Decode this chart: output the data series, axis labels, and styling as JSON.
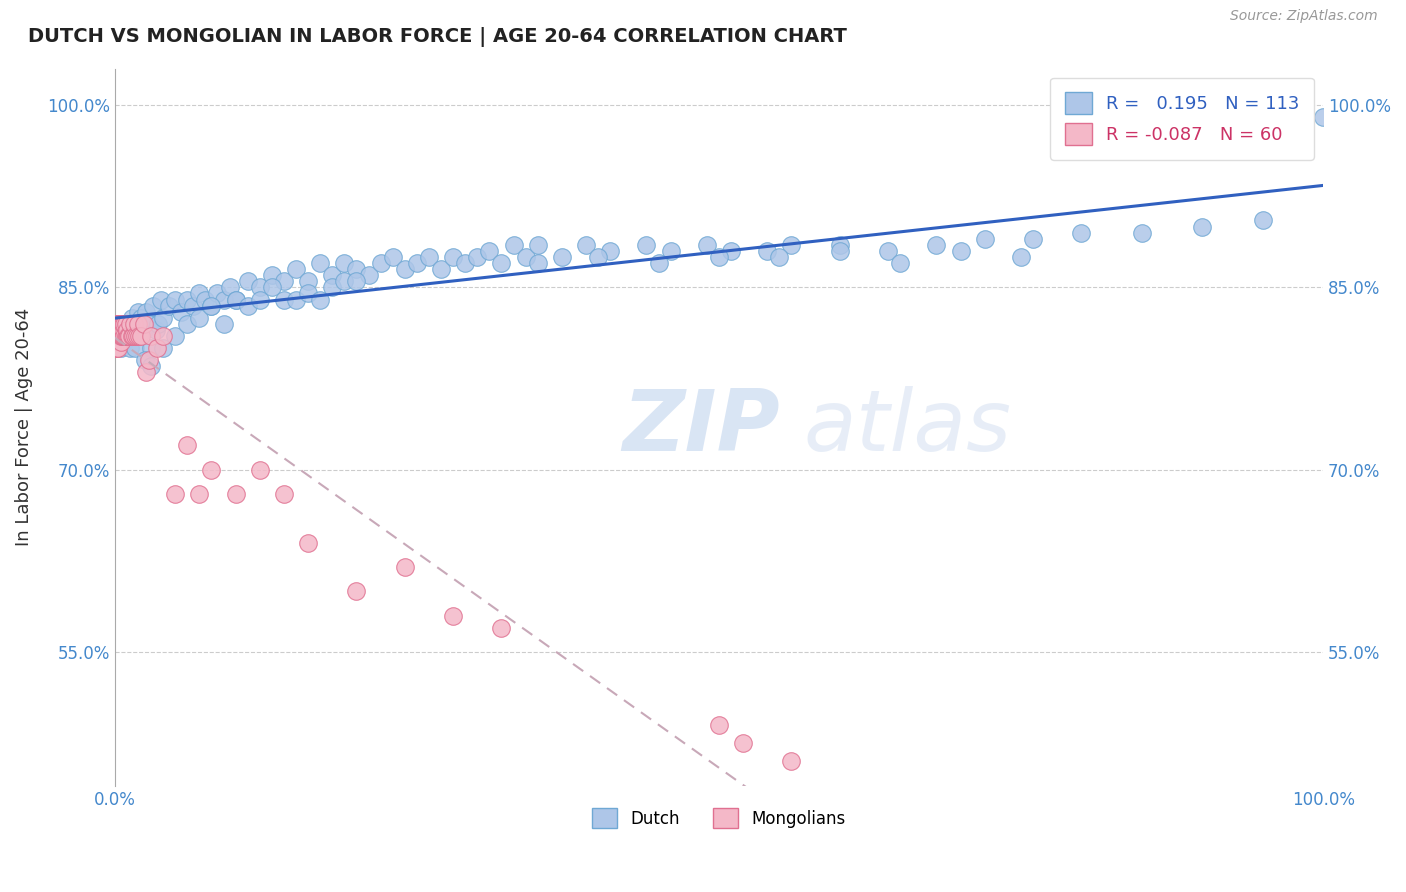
{
  "title": "DUTCH VS MONGOLIAN IN LABOR FORCE | AGE 20-64 CORRELATION CHART",
  "source_text": "Source: ZipAtlas.com",
  "ylabel": "In Labor Force | Age 20-64",
  "xlim": [
    0.0,
    1.0
  ],
  "ylim": [
    0.44,
    1.03
  ],
  "ytick_labels": [
    "55.0%",
    "70.0%",
    "85.0%",
    "100.0%"
  ],
  "ytick_vals": [
    0.55,
    0.7,
    0.85,
    1.0
  ],
  "R_dutch": 0.195,
  "N_dutch": 113,
  "R_mongol": -0.087,
  "N_mongol": 60,
  "dutch_color": "#aec6e8",
  "dutch_edge": "#6fa8d4",
  "mongol_color": "#f4b8c8",
  "mongol_edge": "#e07090",
  "trend_dutch_color": "#3060c0",
  "trend_mongol_color": "#c8a8b8",
  "watermark_zip": "ZIP",
  "watermark_atlas": "atlas",
  "legend_labels": [
    "Dutch",
    "Mongolians"
  ],
  "dutch_x": [
    0.002,
    0.003,
    0.004,
    0.005,
    0.006,
    0.007,
    0.008,
    0.009,
    0.01,
    0.011,
    0.012,
    0.013,
    0.014,
    0.015,
    0.016,
    0.017,
    0.018,
    0.019,
    0.02,
    0.022,
    0.024,
    0.026,
    0.028,
    0.03,
    0.032,
    0.034,
    0.036,
    0.038,
    0.04,
    0.045,
    0.05,
    0.055,
    0.06,
    0.065,
    0.07,
    0.075,
    0.08,
    0.085,
    0.09,
    0.095,
    0.1,
    0.11,
    0.12,
    0.13,
    0.14,
    0.15,
    0.16,
    0.17,
    0.18,
    0.19,
    0.2,
    0.21,
    0.22,
    0.23,
    0.24,
    0.25,
    0.26,
    0.27,
    0.28,
    0.29,
    0.3,
    0.31,
    0.32,
    0.33,
    0.34,
    0.35,
    0.37,
    0.39,
    0.41,
    0.44,
    0.46,
    0.49,
    0.51,
    0.54,
    0.56,
    0.6,
    0.64,
    0.68,
    0.72,
    0.76,
    0.8,
    0.85,
    0.9,
    0.95,
    0.025,
    0.03,
    0.04,
    0.05,
    0.06,
    0.07,
    0.08,
    0.09,
    0.1,
    0.11,
    0.12,
    0.13,
    0.14,
    0.15,
    0.16,
    0.17,
    0.18,
    0.19,
    0.2,
    0.35,
    0.4,
    0.45,
    0.5,
    0.55,
    0.6,
    0.65,
    0.7,
    0.75,
    1.0
  ],
  "dutch_y": [
    0.81,
    0.815,
    0.82,
    0.8,
    0.81,
    0.82,
    0.805,
    0.815,
    0.81,
    0.82,
    0.815,
    0.8,
    0.825,
    0.81,
    0.82,
    0.8,
    0.815,
    0.83,
    0.82,
    0.825,
    0.815,
    0.83,
    0.82,
    0.8,
    0.835,
    0.815,
    0.82,
    0.84,
    0.825,
    0.835,
    0.84,
    0.83,
    0.84,
    0.835,
    0.845,
    0.84,
    0.835,
    0.845,
    0.84,
    0.85,
    0.84,
    0.855,
    0.85,
    0.86,
    0.855,
    0.865,
    0.855,
    0.87,
    0.86,
    0.87,
    0.865,
    0.86,
    0.87,
    0.875,
    0.865,
    0.87,
    0.875,
    0.865,
    0.875,
    0.87,
    0.875,
    0.88,
    0.87,
    0.885,
    0.875,
    0.885,
    0.875,
    0.885,
    0.88,
    0.885,
    0.88,
    0.885,
    0.88,
    0.88,
    0.885,
    0.885,
    0.88,
    0.885,
    0.89,
    0.89,
    0.895,
    0.895,
    0.9,
    0.905,
    0.79,
    0.785,
    0.8,
    0.81,
    0.82,
    0.825,
    0.835,
    0.82,
    0.84,
    0.835,
    0.84,
    0.85,
    0.84,
    0.84,
    0.845,
    0.84,
    0.85,
    0.855,
    0.855,
    0.87,
    0.875,
    0.87,
    0.875,
    0.875,
    0.88,
    0.87,
    0.88,
    0.875,
    0.99
  ],
  "mongol_x": [
    0.0,
    0.0,
    0.001,
    0.001,
    0.001,
    0.002,
    0.002,
    0.002,
    0.003,
    0.003,
    0.003,
    0.004,
    0.004,
    0.004,
    0.005,
    0.005,
    0.005,
    0.006,
    0.006,
    0.007,
    0.007,
    0.007,
    0.008,
    0.008,
    0.009,
    0.009,
    0.01,
    0.01,
    0.011,
    0.012,
    0.013,
    0.014,
    0.015,
    0.016,
    0.017,
    0.018,
    0.019,
    0.02,
    0.022,
    0.024,
    0.026,
    0.028,
    0.03,
    0.035,
    0.04,
    0.05,
    0.06,
    0.07,
    0.08,
    0.1,
    0.12,
    0.14,
    0.16,
    0.2,
    0.24,
    0.28,
    0.32,
    0.5,
    0.52,
    0.56
  ],
  "mongol_y": [
    0.8,
    0.81,
    0.82,
    0.81,
    0.8,
    0.82,
    0.81,
    0.8,
    0.82,
    0.81,
    0.8,
    0.815,
    0.81,
    0.82,
    0.805,
    0.81,
    0.815,
    0.81,
    0.82,
    0.81,
    0.815,
    0.82,
    0.81,
    0.82,
    0.81,
    0.82,
    0.81,
    0.815,
    0.81,
    0.81,
    0.82,
    0.81,
    0.81,
    0.82,
    0.81,
    0.81,
    0.82,
    0.81,
    0.81,
    0.82,
    0.78,
    0.79,
    0.81,
    0.8,
    0.81,
    0.68,
    0.72,
    0.68,
    0.7,
    0.68,
    0.7,
    0.68,
    0.64,
    0.6,
    0.62,
    0.58,
    0.57,
    0.49,
    0.475,
    0.46
  ]
}
